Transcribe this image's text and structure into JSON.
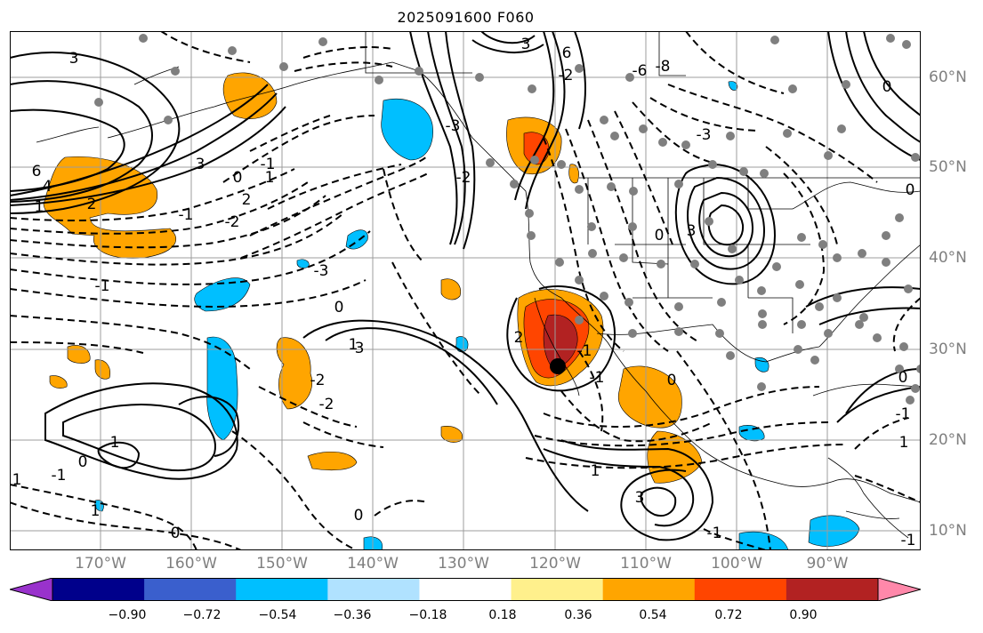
{
  "title": "2025091600 F060",
  "map": {
    "lon_labels": [
      "170°W",
      "160°W",
      "150°W",
      "140°W",
      "130°W",
      "120°W",
      "110°W",
      "100°W",
      "90°W"
    ],
    "lat_labels": [
      "60°N",
      "50°N",
      "40°N",
      "30°N",
      "20°N",
      "10°N"
    ],
    "contour_labels": [
      "3",
      "6",
      "4",
      "1",
      "2",
      "3",
      "0",
      "1",
      "2",
      "-2",
      "-1",
      "-3",
      "0",
      "1",
      "-1",
      "-2",
      "1",
      "0",
      "-1",
      "0",
      "0",
      "1",
      "1",
      "-2",
      "-3",
      "2",
      "1",
      "-2",
      "-1",
      "3",
      "6",
      "-3",
      "-2",
      "-1",
      "-6",
      "-8",
      "-3",
      "0",
      "3",
      "0",
      "-1",
      "3",
      "-1",
      "0",
      "-1",
      "1",
      "-1",
      "0",
      "0"
    ],
    "fill_colors": {
      "orange": "#ffa500",
      "orangered": "#ff4500",
      "firebrick": "#b22222",
      "deepskyblue": "#00bfff",
      "lightblue": "#add8e6"
    }
  },
  "colorbar": {
    "colors": [
      "#9932cc",
      "#00008b",
      "#3a5fcd",
      "#00bfff",
      "#b0e2ff",
      "#ffffff",
      "#fff08c",
      "#ffa500",
      "#ff4500",
      "#b22222",
      "#ff88aa"
    ],
    "tick_labels": [
      "−0.90",
      "−0.72",
      "−0.54",
      "−0.36",
      "−0.18",
      "0.18",
      "0.36",
      "0.54",
      "0.72",
      "0.90"
    ]
  }
}
